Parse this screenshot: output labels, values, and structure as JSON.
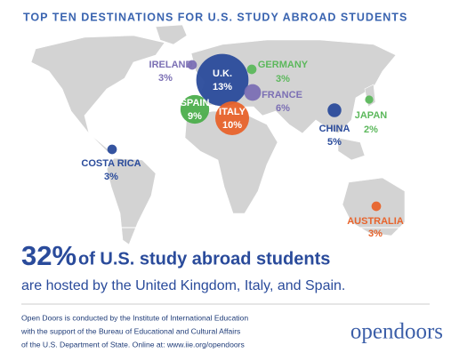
{
  "title": "TOP TEN DESTINATIONS FOR U.S. STUDY ABROAD STUDENTS",
  "destinations": [
    {
      "name": "U.K.",
      "value": 13,
      "value_label": "13%",
      "color": "#2a4b9b"
    },
    {
      "name": "IRELAND",
      "value": 3,
      "value_label": "3%",
      "color": "#7b6fb4"
    },
    {
      "name": "GERMANY",
      "value": 3,
      "value_label": "3%",
      "color": "#5cb85c"
    },
    {
      "name": "FRANCE",
      "value": 6,
      "value_label": "6%",
      "color": "#7b6fb4"
    },
    {
      "name": "SPAIN",
      "value": 9,
      "value_label": "9%",
      "color": "#4cae4c"
    },
    {
      "name": "ITALY",
      "value": 10,
      "value_label": "10%",
      "color": "#e8632b"
    },
    {
      "name": "CHINA",
      "value": 5,
      "value_label": "5%",
      "color": "#2a4b9b"
    },
    {
      "name": "JAPAN",
      "value": 2,
      "value_label": "2%",
      "color": "#5cb85c"
    },
    {
      "name": "COSTA RICA",
      "value": 3,
      "value_label": "3%",
      "color": "#2a4b9b"
    },
    {
      "name": "AUSTRALIA",
      "value": 3,
      "value_label": "3%",
      "color": "#e8632b"
    }
  ],
  "headline": {
    "figure": "32%",
    "text": "of U.S. study abroad students",
    "subtext": "are hosted by the United Kingdom, Italy, and Spain."
  },
  "footer": [
    "Open Doors is conducted by the Institute of International Education",
    "with the support of the Bureau of Educational and Cultural Affairs",
    "of the U.S. Department of State. Online at: www.iie.org/opendoors"
  ],
  "logo": "opendoors"
}
